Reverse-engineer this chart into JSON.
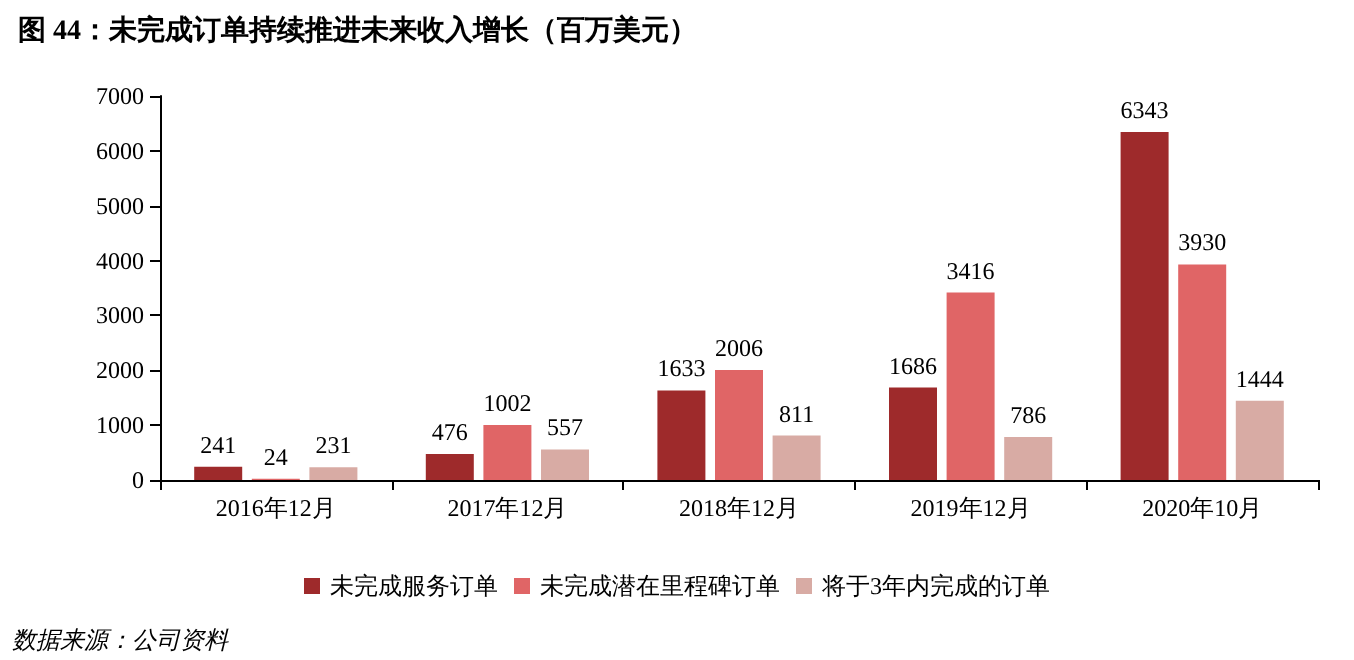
{
  "chart_data": {
    "type": "bar",
    "title": "图 44：未完成订单持续推进未来收入增长（百万美元）",
    "categories": [
      "2016年12月",
      "2017年12月",
      "2018年12月",
      "2019年12月",
      "2020年10月"
    ],
    "series": [
      {
        "name": "未完成服务订单",
        "color": "#9e2a2b",
        "values": [
          241,
          476,
          1633,
          1686,
          6343
        ]
      },
      {
        "name": "未完成潜在里程碑订单",
        "color": "#e06566",
        "values": [
          24,
          1002,
          2006,
          3416,
          3930
        ]
      },
      {
        "name": "将于3年内完成的订单",
        "color": "#d8aba4",
        "values": [
          231,
          557,
          811,
          786,
          1444
        ]
      }
    ],
    "ylim": [
      0,
      7000
    ],
    "yticks": [
      0,
      1000,
      2000,
      3000,
      4000,
      5000,
      6000,
      7000
    ],
    "grid": false,
    "legend": "bottom",
    "data_labels": true,
    "annotations": [
      "数据来源：公司资料"
    ]
  }
}
